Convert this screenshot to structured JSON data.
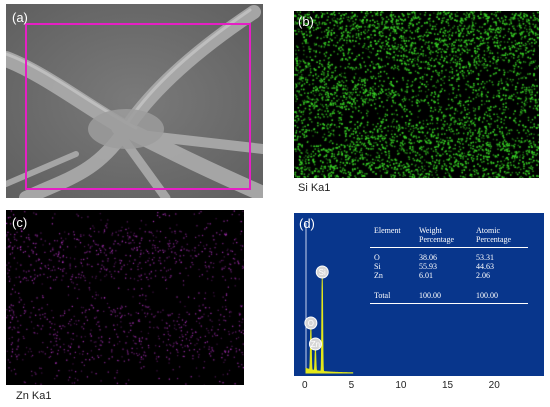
{
  "panels": {
    "a": {
      "label": "(a)"
    },
    "b": {
      "label": "(b)",
      "caption": "Si Ka1",
      "dot_color": "#39d427"
    },
    "c": {
      "label": "(c)",
      "caption": "Zn Ka1",
      "dot_color": "#c93ad8"
    },
    "d": {
      "label": "(d)"
    }
  },
  "table": {
    "headers": [
      "Element",
      "Weight\nPercentage",
      "Atomic\nPercentage"
    ],
    "rows": [
      {
        "element": "O",
        "weight": "38.06",
        "atomic": "53.31"
      },
      {
        "element": "Si",
        "weight": "55.93",
        "atomic": "44.63"
      },
      {
        "element": "Zn",
        "weight": "6.01",
        "atomic": "2.06"
      }
    ],
    "total": {
      "element": "Total",
      "weight": "100.00",
      "atomic": "100.00"
    }
  },
  "spectrum": {
    "x_ticks": [
      "0",
      "5",
      "10",
      "15",
      "20"
    ],
    "xlim": [
      0,
      24
    ],
    "peaks": [
      {
        "label": "O",
        "energy": 0.52,
        "height": 0.28
      },
      {
        "label": "Zn",
        "energy": 1.01,
        "height": 0.14
      },
      {
        "label": "Si",
        "energy": 1.74,
        "height": 0.62
      }
    ]
  },
  "colors": {
    "sem_frame": "#e51fc4",
    "spectrum_bg": "#08368c",
    "spectrum_fill": "#e3e81a"
  }
}
